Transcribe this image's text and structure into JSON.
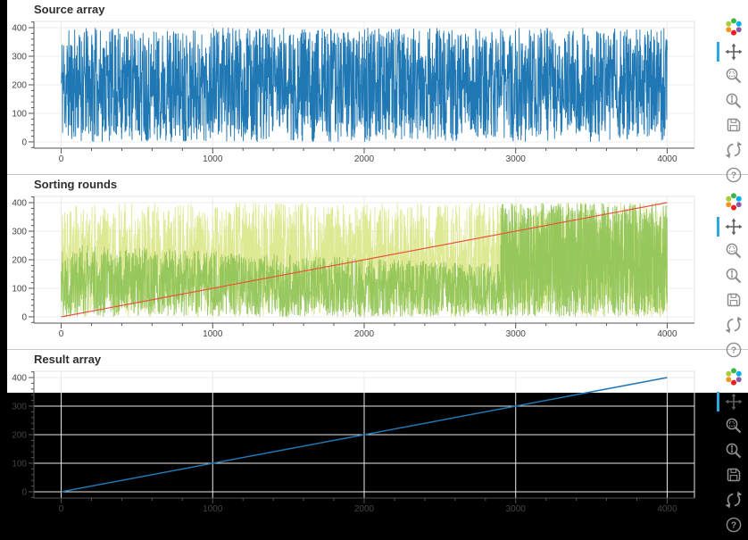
{
  "page": {
    "background_color": "#000000",
    "panel_color": "#ffffff",
    "divider_color": "#c9c9c9"
  },
  "toolbar": {
    "icon_color": "#8e8e8e",
    "active_icon_color": "#5f5f5f",
    "active_indicator_color": "#29a8e1",
    "active_tool": "pan",
    "help_glyph": "?",
    "logo_colors": [
      "#39b54a",
      "#00aeef",
      "#8e5ba6",
      "#ed1c24",
      "#f7941e",
      "#a6ce39"
    ],
    "tools": [
      {
        "name": "bokeh-logo",
        "label": "Bokeh"
      },
      {
        "name": "pan",
        "label": "Pan",
        "active": true
      },
      {
        "name": "box-zoom",
        "label": "Box Zoom"
      },
      {
        "name": "wheel-zoom",
        "label": "Wheel Zoom"
      },
      {
        "name": "save",
        "label": "Save"
      },
      {
        "name": "reset",
        "label": "Reset"
      },
      {
        "name": "help",
        "label": "Help"
      }
    ]
  },
  "chart_data": [
    {
      "type": "line",
      "title": "Source array",
      "x_range": [
        0,
        4000
      ],
      "y_range": [
        0,
        400
      ],
      "x_ticks": [
        0,
        1000,
        2000,
        3000,
        4000
      ],
      "y_ticks": [
        0,
        100,
        200,
        300,
        400
      ],
      "grid": true,
      "legend": "none",
      "series": [
        {
          "name": "source values",
          "kind": "uniform-noise",
          "description": "about 4000 random values uniformly distributed between 0 and 400 across indices 0-4000, drawn as a dense blue line",
          "color": "#1f77b4",
          "alpha": 1,
          "n": 2600,
          "x_span": [
            0,
            4000
          ],
          "y_low": [
            0,
            0
          ],
          "y_high": [
            400,
            400
          ],
          "seed": 11,
          "line_width": 0.9
        }
      ]
    },
    {
      "type": "line",
      "title": "Sorting rounds",
      "x_range": [
        0,
        4000
      ],
      "y_range": [
        0,
        400
      ],
      "x_ticks": [
        0,
        1000,
        2000,
        3000,
        4000
      ],
      "y_ticks": [
        0,
        100,
        200,
        300,
        400
      ],
      "grid": true,
      "legend": "none",
      "series": [
        {
          "name": "early round (unsorted)",
          "kind": "uniform-noise",
          "description": "pale yellow-green full-range noise 0-400 across all indices",
          "color": "#dde88e",
          "alpha": 0.95,
          "n": 2600,
          "x_span": [
            0,
            4000
          ],
          "y_low": [
            0,
            0
          ],
          "y_high": [
            400,
            400
          ],
          "seed": 21,
          "line_width": 0.9
        },
        {
          "name": "later round (partially sorted)",
          "kind": "uniform-noise",
          "description": "green noise bounded above by an envelope falling from about 255 to 185 for indices 0-2900",
          "color": "#8cc152",
          "alpha": 0.88,
          "n": 2000,
          "x_span": [
            0,
            2900
          ],
          "y_low": [
            0,
            0
          ],
          "y_high": [
            255,
            185
          ],
          "seed": 22,
          "line_width": 0.9
        },
        {
          "name": "later round (unsorted tail)",
          "kind": "uniform-noise",
          "description": "dense green full-range noise 0-400 for indices 2900-4000",
          "color": "#8cc152",
          "alpha": 0.88,
          "n": 1300,
          "x_span": [
            2900,
            4000
          ],
          "y_low": [
            0,
            0
          ],
          "y_high": [
            400,
            400
          ],
          "seed": 23,
          "line_width": 0.9
        },
        {
          "name": "sorted reference",
          "kind": "segment",
          "description": "thin orange-red diagonal line from (0,0) to (4000,400)",
          "color": "#e8553d",
          "alpha": 1,
          "points": [
            [
              0,
              0
            ],
            [
              4000,
              400
            ]
          ],
          "line_width": 1.2
        }
      ]
    },
    {
      "type": "line",
      "title": "Result array",
      "x_range": [
        0,
        4000
      ],
      "y_range": [
        0,
        400
      ],
      "x_ticks": [
        0,
        1000,
        2000,
        3000,
        4000
      ],
      "y_ticks": [
        0,
        100,
        200,
        300,
        400
      ],
      "grid": true,
      "legend": "none",
      "series": [
        {
          "name": "sorted result",
          "kind": "segment",
          "description": "sorted ascending diagonal from (0,0) to (4000,400); only the top sliver of this plot is visible before the screenshot cuts off",
          "color": "#1f77b4",
          "alpha": 1,
          "points": [
            [
              0,
              0
            ],
            [
              4000,
              400
            ]
          ],
          "line_width": 1.5
        }
      ]
    }
  ]
}
